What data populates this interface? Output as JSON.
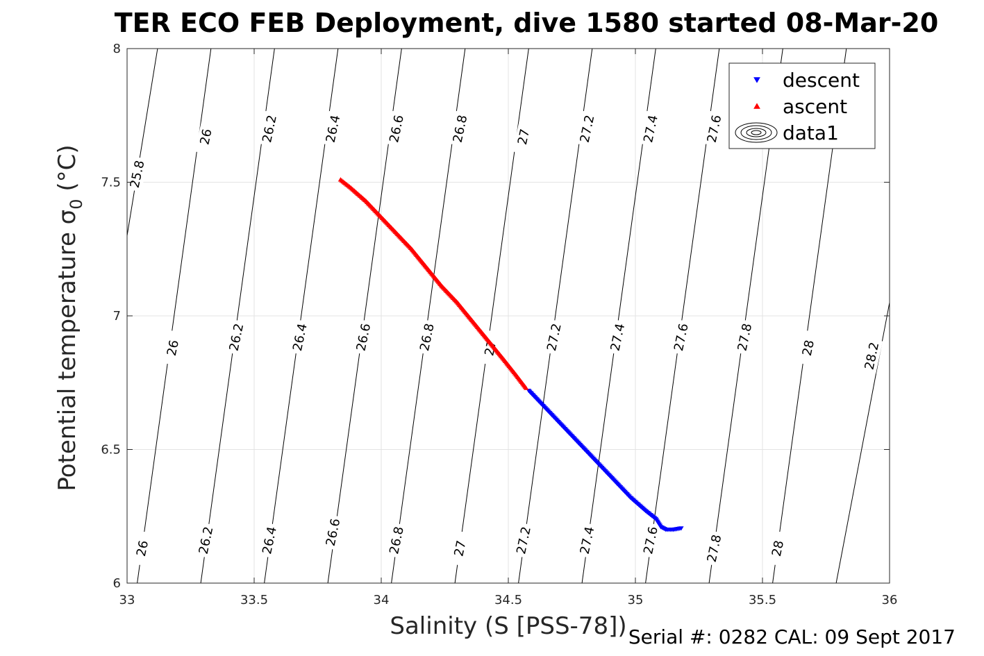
{
  "chart_data": {
    "type": "scatter",
    "title": "TER ECO FEB Deployment, dive 1580 started 08-Mar-20",
    "xlabel": "Salinity (S [PSS-78])",
    "ylabel": "Potential temperature σ",
    "ylabel_sub": "0",
    "ylabel_tail": " (°C)",
    "xlim": [
      33,
      36
    ],
    "ylim": [
      6,
      8
    ],
    "grid": true,
    "legend_position": "top-right",
    "x_ticks": [
      33,
      33.5,
      34,
      34.5,
      35,
      35.5,
      36
    ],
    "x_tick_labels": [
      "33",
      "33.5",
      "34",
      "34.5",
      "35",
      "35.5",
      "36"
    ],
    "y_ticks": [
      6,
      6.5,
      7,
      7.5,
      8
    ],
    "y_tick_labels": [
      "6",
      "6.5",
      "7",
      "7.5",
      "8"
    ],
    "series": [
      {
        "name": "descent",
        "marker": "triangle-down",
        "color": "#0000ff",
        "points": [
          [
            34.58,
            6.72
          ],
          [
            34.62,
            6.68
          ],
          [
            34.68,
            6.62
          ],
          [
            34.74,
            6.56
          ],
          [
            34.8,
            6.5
          ],
          [
            34.86,
            6.44
          ],
          [
            34.92,
            6.38
          ],
          [
            34.98,
            6.32
          ],
          [
            35.04,
            6.27
          ],
          [
            35.08,
            6.24
          ],
          [
            35.1,
            6.21
          ],
          [
            35.12,
            6.2
          ],
          [
            35.15,
            6.2
          ],
          [
            35.18,
            6.205
          ]
        ]
      },
      {
        "name": "ascent",
        "marker": "triangle-up",
        "color": "#ff0000",
        "points": [
          [
            33.84,
            7.51
          ],
          [
            33.88,
            7.48
          ],
          [
            33.94,
            7.43
          ],
          [
            34.0,
            7.37
          ],
          [
            34.06,
            7.31
          ],
          [
            34.12,
            7.25
          ],
          [
            34.18,
            7.18
          ],
          [
            34.24,
            7.11
          ],
          [
            34.3,
            7.05
          ],
          [
            34.36,
            6.98
          ],
          [
            34.42,
            6.91
          ],
          [
            34.48,
            6.84
          ],
          [
            34.53,
            6.78
          ],
          [
            34.57,
            6.73
          ]
        ]
      }
    ],
    "legend": [
      {
        "label": "descent",
        "marker": "triangle-down",
        "color": "#0000ff"
      },
      {
        "label": "ascent",
        "marker": "triangle-up",
        "color": "#ff0000"
      },
      {
        "label": "data1",
        "marker": "contour",
        "color": "#000000"
      }
    ],
    "contours": {
      "name": "data1",
      "color": "#000000",
      "levels": [
        25.8,
        26,
        26.2,
        26.4,
        26.6,
        26.8,
        27,
        27.2,
        27.4,
        27.6,
        27.8,
        28,
        28.2
      ],
      "lines": [
        [
          [
            33.0,
            7.3
          ],
          [
            33.12,
            8.0
          ]
        ],
        [
          [
            33.04,
            6.0
          ],
          [
            33.33,
            8.0
          ]
        ],
        [
          [
            33.29,
            6.0
          ],
          [
            33.58,
            8.0
          ]
        ],
        [
          [
            33.54,
            6.0
          ],
          [
            33.83,
            8.0
          ]
        ],
        [
          [
            33.79,
            6.0
          ],
          [
            34.08,
            8.0
          ]
        ],
        [
          [
            34.04,
            6.0
          ],
          [
            34.33,
            8.0
          ]
        ],
        [
          [
            34.29,
            6.0
          ],
          [
            34.58,
            8.0
          ]
        ],
        [
          [
            34.54,
            6.0
          ],
          [
            34.83,
            8.0
          ]
        ],
        [
          [
            34.79,
            6.0
          ],
          [
            35.08,
            8.0
          ]
        ],
        [
          [
            35.04,
            6.0
          ],
          [
            35.33,
            8.0
          ]
        ],
        [
          [
            35.29,
            6.0
          ],
          [
            35.58,
            8.0
          ]
        ],
        [
          [
            35.54,
            6.0
          ],
          [
            35.83,
            8.0
          ]
        ],
        [
          [
            35.79,
            6.0
          ],
          [
            36.0,
            7.05
          ]
        ]
      ],
      "labels": [
        {
          "text": "26",
          "x": 33.06,
          "y": 6.13
        },
        {
          "text": "26.2",
          "x": 33.31,
          "y": 6.16
        },
        {
          "text": "26.4",
          "x": 33.56,
          "y": 6.16
        },
        {
          "text": "26.6",
          "x": 33.81,
          "y": 6.19
        },
        {
          "text": "26.8",
          "x": 34.06,
          "y": 6.16
        },
        {
          "text": "27",
          "x": 34.31,
          "y": 6.13
        },
        {
          "text": "27.2",
          "x": 34.56,
          "y": 6.16
        },
        {
          "text": "27.4",
          "x": 34.81,
          "y": 6.16
        },
        {
          "text": "27.6",
          "x": 35.06,
          "y": 6.16
        },
        {
          "text": "27.8",
          "x": 35.31,
          "y": 6.13
        },
        {
          "text": "28",
          "x": 35.56,
          "y": 6.13
        },
        {
          "text": "26",
          "x": 33.18,
          "y": 6.88
        },
        {
          "text": "26.2",
          "x": 33.43,
          "y": 6.92
        },
        {
          "text": "26.4",
          "x": 33.68,
          "y": 6.92
        },
        {
          "text": "26.6",
          "x": 33.93,
          "y": 6.92
        },
        {
          "text": "26.8",
          "x": 34.18,
          "y": 6.92
        },
        {
          "text": "27",
          "x": 34.43,
          "y": 6.88
        },
        {
          "text": "27.2",
          "x": 34.68,
          "y": 6.92
        },
        {
          "text": "27.4",
          "x": 34.93,
          "y": 6.92
        },
        {
          "text": "27.6",
          "x": 35.18,
          "y": 6.92
        },
        {
          "text": "27.8",
          "x": 35.43,
          "y": 6.92
        },
        {
          "text": "28",
          "x": 35.68,
          "y": 6.88
        },
        {
          "text": "28.2",
          "x": 35.93,
          "y": 6.85
        },
        {
          "text": "25.8",
          "x": 33.04,
          "y": 7.53
        },
        {
          "text": "26",
          "x": 33.31,
          "y": 7.67
        },
        {
          "text": "26.2",
          "x": 33.56,
          "y": 7.7
        },
        {
          "text": "26.4",
          "x": 33.81,
          "y": 7.7
        },
        {
          "text": "26.6",
          "x": 34.06,
          "y": 7.7
        },
        {
          "text": "26.8",
          "x": 34.31,
          "y": 7.7
        },
        {
          "text": "27",
          "x": 34.56,
          "y": 7.67
        },
        {
          "text": "27.2",
          "x": 34.81,
          "y": 7.7
        },
        {
          "text": "27.4",
          "x": 35.06,
          "y": 7.7
        },
        {
          "text": "27.6",
          "x": 35.31,
          "y": 7.7
        }
      ]
    }
  },
  "footer": {
    "serial": "Serial #: 0282  CAL: 09 Sept 2017"
  }
}
